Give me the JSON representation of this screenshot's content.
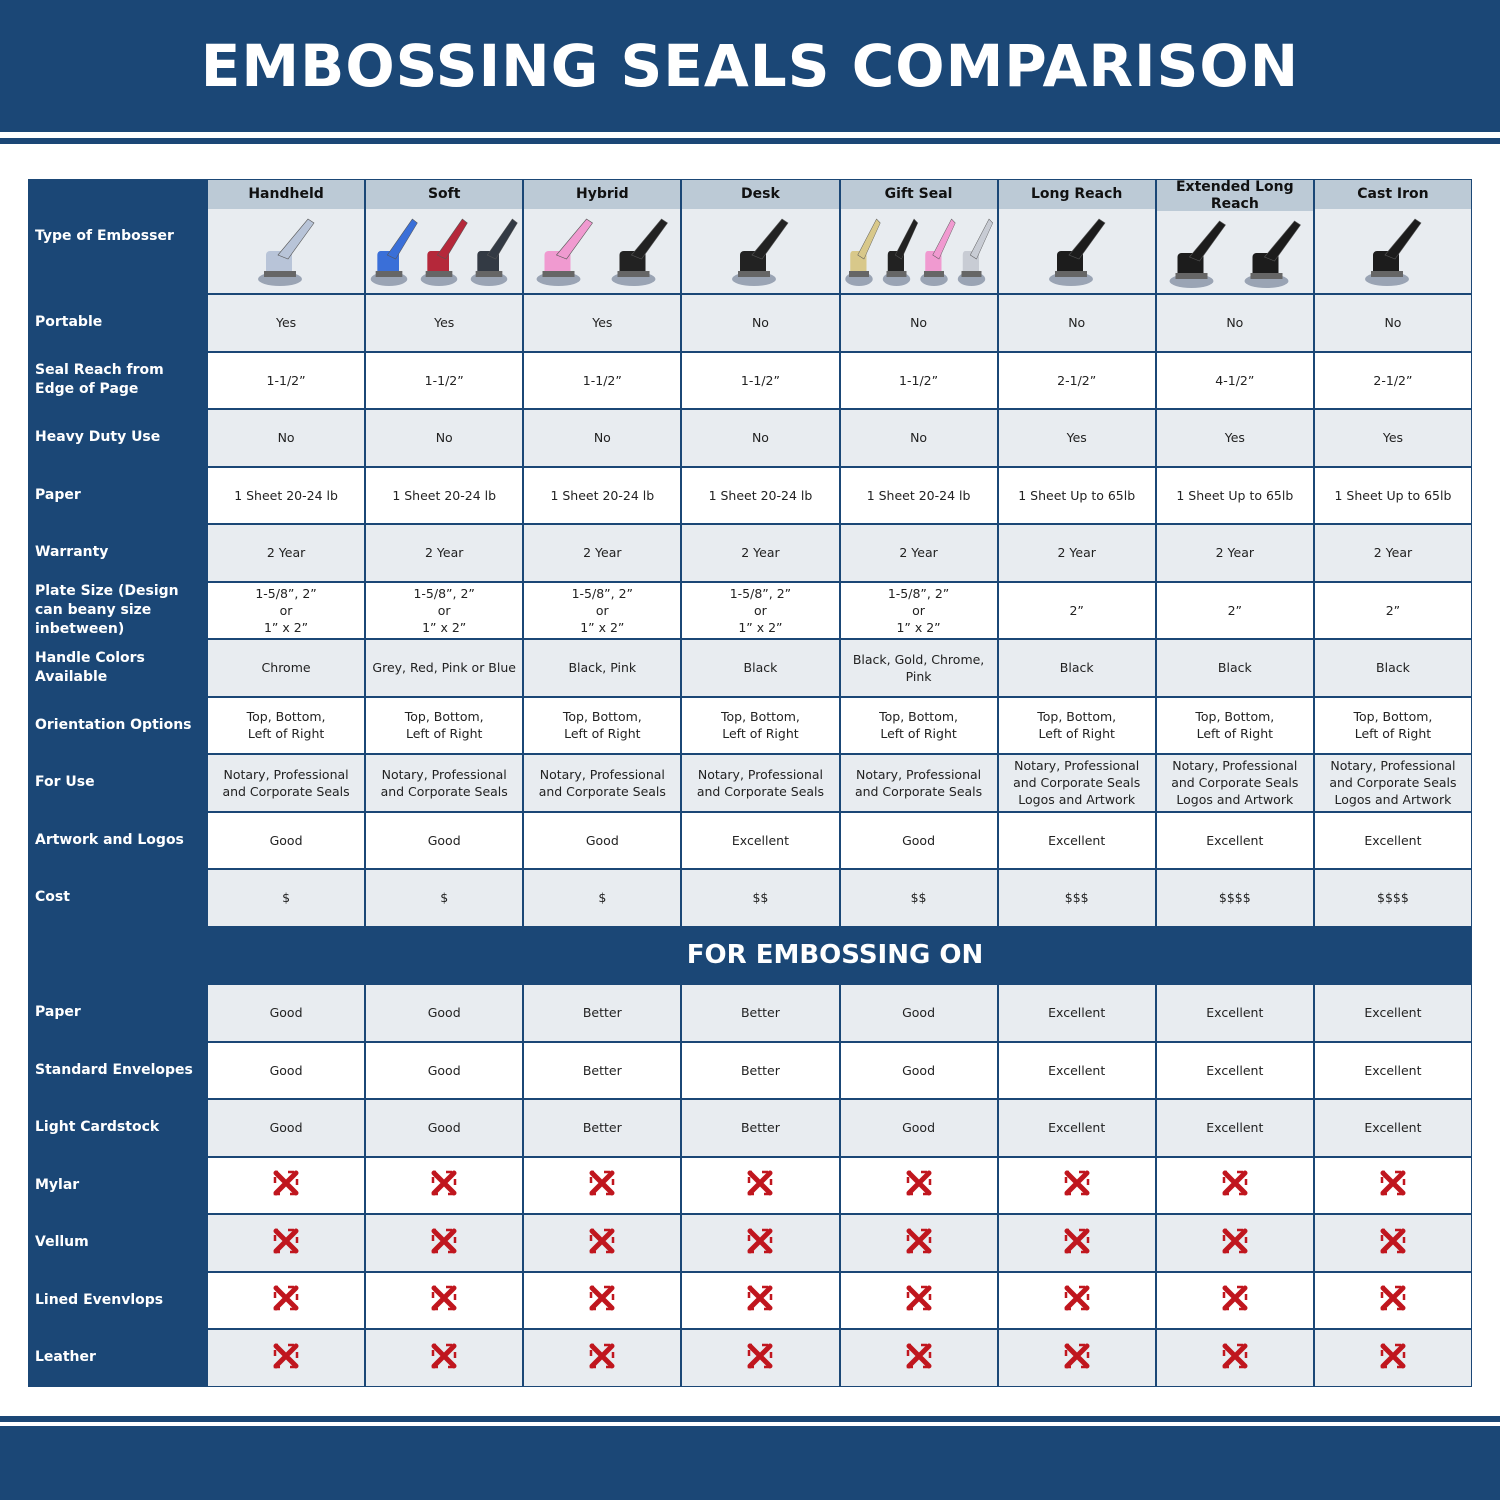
{
  "title": "EMBOSSING SEALS COMPARISON",
  "corner_label": "Type of Embosser",
  "columns": [
    {
      "name": "Handheld",
      "image_colors": [
        "#b8c4d8"
      ]
    },
    {
      "name": "Soft",
      "image_colors": [
        "#3a6fd8",
        "#b5283a",
        "#333a44"
      ]
    },
    {
      "name": "Hybrid",
      "image_colors": [
        "#f09ad0",
        "#222222"
      ]
    },
    {
      "name": "Desk",
      "image_colors": [
        "#222222"
      ]
    },
    {
      "name": "Gift Seal",
      "image_colors": [
        "#d8c88a",
        "#222222",
        "#f09ad0",
        "#c8ccd4"
      ]
    },
    {
      "name": "Long Reach",
      "image_colors": [
        "#1c1c1c"
      ]
    },
    {
      "name": "Extended Long Reach",
      "image_colors": [
        "#1c1c1c",
        "#1c1c1c"
      ]
    },
    {
      "name": "Cast Iron",
      "image_colors": [
        "#1c1c1c"
      ]
    }
  ],
  "rows": [
    {
      "label": "Portable",
      "values": [
        "Yes",
        "Yes",
        "Yes",
        "No",
        "No",
        "No",
        "No",
        "No"
      ]
    },
    {
      "label": "Seal Reach from Edge of Page",
      "values": [
        "1-1/2”",
        "1-1/2”",
        "1-1/2”",
        "1-1/2”",
        "1-1/2”",
        "2-1/2”",
        "4-1/2”",
        "2-1/2”"
      ]
    },
    {
      "label": "Heavy Duty Use",
      "values": [
        "No",
        "No",
        "No",
        "No",
        "No",
        "Yes",
        "Yes",
        "Yes"
      ]
    },
    {
      "label": "Paper",
      "values": [
        "1 Sheet 20-24 lb",
        "1 Sheet 20-24 lb",
        "1 Sheet 20-24 lb",
        "1 Sheet 20-24 lb",
        "1 Sheet 20-24 lb",
        "1 Sheet Up to 65lb",
        "1 Sheet Up to 65lb",
        "1 Sheet Up to 65lb"
      ]
    },
    {
      "label": "Warranty",
      "values": [
        "2 Year",
        "2 Year",
        "2 Year",
        "2 Year",
        "2 Year",
        "2 Year",
        "2 Year",
        "2 Year"
      ]
    },
    {
      "label": "Plate Size (Design can beany size inbetween)",
      "values": [
        "1-5/8”, 2”\nor\n1” x 2”",
        "1-5/8”, 2”\nor\n1” x 2”",
        "1-5/8”, 2”\nor\n1” x 2”",
        "1-5/8”, 2”\nor\n1” x 2”",
        "1-5/8”, 2”\nor\n1” x 2”",
        "2”",
        "2”",
        "2”"
      ]
    },
    {
      "label": "Handle Colors Available",
      "values": [
        "Chrome",
        "Grey, Red, Pink or Blue",
        "Black, Pink",
        "Black",
        "Black, Gold, Chrome, Pink",
        "Black",
        "Black",
        "Black"
      ]
    },
    {
      "label": "Orientation Options",
      "values": [
        "Top, Bottom,\nLeft of Right",
        "Top, Bottom,\nLeft of Right",
        "Top, Bottom,\nLeft of Right",
        "Top, Bottom,\nLeft of Right",
        "Top, Bottom,\nLeft of Right",
        "Top, Bottom,\nLeft of Right",
        "Top, Bottom,\nLeft of Right",
        "Top, Bottom,\nLeft of Right"
      ]
    },
    {
      "label": "For Use",
      "values": [
        "Notary, Professional\nand Corporate Seals",
        "Notary, Professional\nand Corporate Seals",
        "Notary, Professional\nand Corporate Seals",
        "Notary, Professional\nand Corporate Seals",
        "Notary, Professional\nand Corporate Seals",
        "Notary, Professional\nand Corporate Seals\nLogos and Artwork",
        "Notary, Professional\nand Corporate Seals\nLogos and Artwork",
        "Notary, Professional\nand Corporate Seals\nLogos and Artwork"
      ]
    },
    {
      "label": "Artwork and Logos",
      "values": [
        "Good",
        "Good",
        "Good",
        "Excellent",
        "Good",
        "Excellent",
        "Excellent",
        "Excellent"
      ]
    },
    {
      "label": "Cost",
      "values": [
        "$",
        "$",
        "$",
        "$$",
        "$$",
        "$$$",
        "$$$$",
        "$$$$"
      ]
    }
  ],
  "section_title": "FOR EMBOSSING ON",
  "embossing_rows": [
    {
      "label": "Paper",
      "values": [
        "Good",
        "Good",
        "Better",
        "Better",
        "Good",
        "Excellent",
        "Excellent",
        "Excellent"
      ]
    },
    {
      "label": "Standard Envelopes",
      "values": [
        "Good",
        "Good",
        "Better",
        "Better",
        "Good",
        "Excellent",
        "Excellent",
        "Excellent"
      ]
    },
    {
      "label": "Light Cardstock",
      "values": [
        "Good",
        "Good",
        "Better",
        "Better",
        "Good",
        "Excellent",
        "Excellent",
        "Excellent"
      ]
    },
    {
      "label": "Mylar",
      "values": [
        "x-icon",
        "x-icon",
        "x-icon",
        "x-icon",
        "x-icon",
        "x-icon",
        "x-icon",
        "x-icon"
      ]
    },
    {
      "label": "Vellum",
      "values": [
        "x-icon",
        "x-icon",
        "x-icon",
        "x-icon",
        "x-icon",
        "x-icon",
        "x-icon",
        "x-icon"
      ]
    },
    {
      "label": "Lined Evenvlops",
      "values": [
        "x-icon",
        "x-icon",
        "x-icon",
        "x-icon",
        "x-icon",
        "x-icon",
        "x-icon",
        "x-icon"
      ]
    },
    {
      "label": "Leather",
      "values": [
        "x-icon",
        "x-icon",
        "x-icon",
        "x-icon",
        "x-icon",
        "x-icon",
        "x-icon",
        "x-icon"
      ]
    }
  ],
  "colors": {
    "brand_blue": "#1b4776",
    "header_gray": "#bccad6",
    "row_gray": "#e8ecf0",
    "x_red": "#c0161e"
  }
}
